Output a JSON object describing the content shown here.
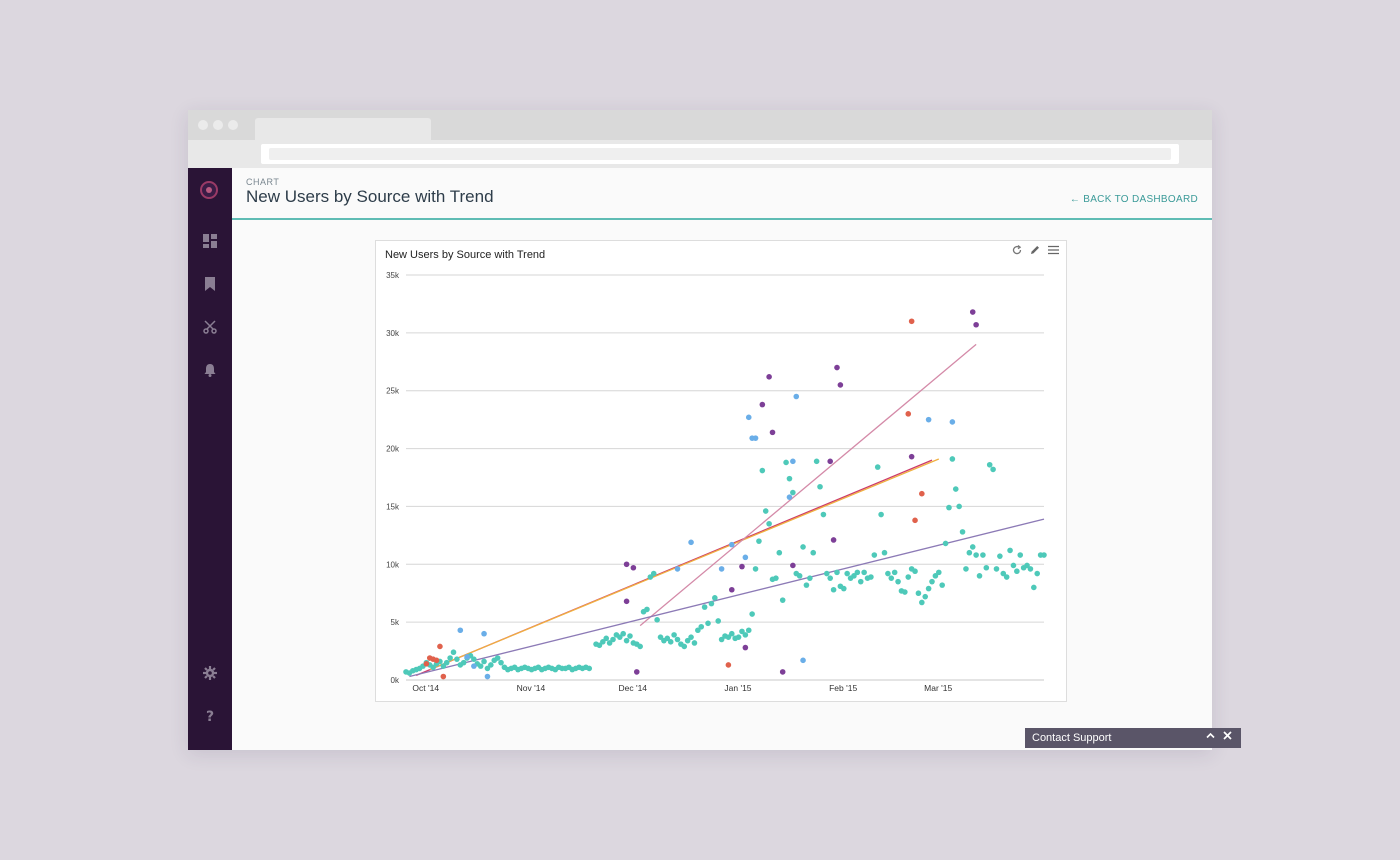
{
  "page": {
    "eyebrow": "CHART",
    "title": "New Users by Source with Trend",
    "back_label": "BACK TO DASHBOARD"
  },
  "sidebar": {
    "icons": [
      "logo",
      "dashboard-icon",
      "bookmark-icon",
      "scissors-icon",
      "bell-icon",
      "gear-icon",
      "help-icon"
    ]
  },
  "card": {
    "title": "New Users by Source with Trend",
    "tools": [
      "refresh-icon",
      "edit-icon",
      "menu-icon"
    ]
  },
  "support": {
    "label": "Contact Support"
  },
  "colors": {
    "accent": "#5fbcb4",
    "sidebar": "#2a1436"
  },
  "chart_data": {
    "type": "scatter",
    "title": "New Users by Source with Trend",
    "xlabel": "",
    "ylabel": "",
    "ylim": [
      0,
      35000
    ],
    "xlim": [
      "2014-09-24",
      "2015-03-31"
    ],
    "y_ticks": [
      "0k",
      "5k",
      "10k",
      "15k",
      "20k",
      "25k",
      "30k",
      "35k"
    ],
    "x_ticks": [
      {
        "label": "Oct '14",
        "date": "2014-10-01"
      },
      {
        "label": "Nov '14",
        "date": "2014-11-01"
      },
      {
        "label": "Dec '14",
        "date": "2014-12-01"
      },
      {
        "label": "Jan '15",
        "date": "2015-01-01"
      },
      {
        "label": "Feb '15",
        "date": "2015-02-01"
      },
      {
        "label": "Mar '15",
        "date": "2015-03-01"
      }
    ],
    "grid": true,
    "series": [
      {
        "color": "#4ec9b9",
        "points": [
          [
            "2014-09-24",
            700
          ],
          [
            "2014-09-25",
            600
          ],
          [
            "2014-09-26",
            800
          ],
          [
            "2014-09-27",
            900
          ],
          [
            "2014-09-28",
            1000
          ],
          [
            "2014-09-29",
            1200
          ],
          [
            "2014-09-30",
            1500
          ],
          [
            "2014-10-01",
            1300
          ],
          [
            "2014-10-02",
            1100
          ],
          [
            "2014-10-03",
            1400
          ],
          [
            "2014-10-04",
            1600
          ],
          [
            "2014-10-05",
            1200
          ],
          [
            "2014-10-06",
            1500
          ],
          [
            "2014-10-07",
            1900
          ],
          [
            "2014-10-08",
            2400
          ],
          [
            "2014-10-09",
            1800
          ],
          [
            "2014-10-10",
            1300
          ],
          [
            "2014-10-11",
            1500
          ],
          [
            "2014-10-12",
            1900
          ],
          [
            "2014-10-13",
            2100
          ],
          [
            "2014-10-14",
            1800
          ],
          [
            "2014-10-15",
            1400
          ],
          [
            "2014-10-16",
            1200
          ],
          [
            "2014-10-17",
            1600
          ],
          [
            "2014-10-18",
            1000
          ],
          [
            "2014-10-19",
            1300
          ],
          [
            "2014-10-20",
            1700
          ],
          [
            "2014-10-21",
            1900
          ],
          [
            "2014-10-22",
            1500
          ],
          [
            "2014-10-23",
            1100
          ],
          [
            "2014-10-24",
            900
          ],
          [
            "2014-10-25",
            1000
          ],
          [
            "2014-10-26",
            1100
          ],
          [
            "2014-10-27",
            900
          ],
          [
            "2014-10-28",
            1000
          ],
          [
            "2014-10-29",
            1100
          ],
          [
            "2014-10-30",
            1000
          ],
          [
            "2014-10-31",
            900
          ],
          [
            "2014-11-01",
            1000
          ],
          [
            "2014-11-02",
            1100
          ],
          [
            "2014-11-03",
            900
          ],
          [
            "2014-11-04",
            1000
          ],
          [
            "2014-11-05",
            1100
          ],
          [
            "2014-11-06",
            1000
          ],
          [
            "2014-11-07",
            900
          ],
          [
            "2014-11-08",
            1100
          ],
          [
            "2014-11-09",
            1000
          ],
          [
            "2014-11-10",
            1000
          ],
          [
            "2014-11-11",
            1100
          ],
          [
            "2014-11-12",
            900
          ],
          [
            "2014-11-13",
            1000
          ],
          [
            "2014-11-14",
            1100
          ],
          [
            "2014-11-15",
            1000
          ],
          [
            "2014-11-16",
            1100
          ],
          [
            "2014-11-17",
            1000
          ],
          [
            "2014-11-19",
            3100
          ],
          [
            "2014-11-20",
            3000
          ],
          [
            "2014-11-21",
            3300
          ],
          [
            "2014-11-22",
            3600
          ],
          [
            "2014-11-23",
            3200
          ],
          [
            "2014-11-24",
            3500
          ],
          [
            "2014-11-25",
            3900
          ],
          [
            "2014-11-26",
            3700
          ],
          [
            "2014-11-27",
            4000
          ],
          [
            "2014-11-28",
            3400
          ],
          [
            "2014-11-29",
            3800
          ],
          [
            "2014-11-30",
            3200
          ],
          [
            "2014-12-01",
            3100
          ],
          [
            "2014-12-02",
            2900
          ],
          [
            "2014-12-03",
            5900
          ],
          [
            "2014-12-04",
            6100
          ],
          [
            "2014-12-05",
            8900
          ],
          [
            "2014-12-06",
            9200
          ],
          [
            "2014-12-07",
            5200
          ],
          [
            "2014-12-08",
            3700
          ],
          [
            "2014-12-09",
            3400
          ],
          [
            "2014-12-10",
            3600
          ],
          [
            "2014-12-11",
            3300
          ],
          [
            "2014-12-12",
            3900
          ],
          [
            "2014-12-13",
            3500
          ],
          [
            "2014-12-14",
            3100
          ],
          [
            "2014-12-15",
            2900
          ],
          [
            "2014-12-16",
            3400
          ],
          [
            "2014-12-17",
            3700
          ],
          [
            "2014-12-18",
            3200
          ],
          [
            "2014-12-19",
            4300
          ],
          [
            "2014-12-20",
            4600
          ],
          [
            "2014-12-21",
            6300
          ],
          [
            "2014-12-22",
            4900
          ],
          [
            "2014-12-23",
            6600
          ],
          [
            "2014-12-24",
            7100
          ],
          [
            "2014-12-25",
            5100
          ],
          [
            "2014-12-26",
            3500
          ],
          [
            "2014-12-27",
            3800
          ],
          [
            "2014-12-28",
            3700
          ],
          [
            "2014-12-29",
            4000
          ],
          [
            "2014-12-30",
            3600
          ],
          [
            "2014-12-31",
            3700
          ],
          [
            "2015-01-01",
            4200
          ],
          [
            "2015-01-02",
            3900
          ],
          [
            "2015-01-03",
            4300
          ],
          [
            "2015-01-04",
            5700
          ],
          [
            "2015-01-05",
            9600
          ],
          [
            "2015-01-06",
            12000
          ],
          [
            "2015-01-07",
            18100
          ],
          [
            "2015-01-08",
            14600
          ],
          [
            "2015-01-09",
            13500
          ],
          [
            "2015-01-10",
            8700
          ],
          [
            "2015-01-11",
            8800
          ],
          [
            "2015-01-12",
            11000
          ],
          [
            "2015-01-13",
            6900
          ],
          [
            "2015-01-14",
            18800
          ],
          [
            "2015-01-15",
            17400
          ],
          [
            "2015-01-16",
            16200
          ],
          [
            "2015-01-17",
            9200
          ],
          [
            "2015-01-18",
            9000
          ],
          [
            "2015-01-19",
            11500
          ],
          [
            "2015-01-20",
            8200
          ],
          [
            "2015-01-21",
            8800
          ],
          [
            "2015-01-22",
            11000
          ],
          [
            "2015-01-23",
            18900
          ],
          [
            "2015-01-24",
            16700
          ],
          [
            "2015-01-25",
            14300
          ],
          [
            "2015-01-26",
            9200
          ],
          [
            "2015-01-27",
            8800
          ],
          [
            "2015-01-28",
            7800
          ],
          [
            "2015-01-29",
            9300
          ],
          [
            "2015-01-30",
            8100
          ],
          [
            "2015-01-31",
            7900
          ],
          [
            "2015-02-01",
            9200
          ],
          [
            "2015-02-02",
            8800
          ],
          [
            "2015-02-03",
            9000
          ],
          [
            "2015-02-04",
            9300
          ],
          [
            "2015-02-05",
            8500
          ],
          [
            "2015-02-06",
            9300
          ],
          [
            "2015-02-07",
            8800
          ],
          [
            "2015-02-08",
            8900
          ],
          [
            "2015-02-09",
            10800
          ],
          [
            "2015-02-10",
            18400
          ],
          [
            "2015-02-11",
            14300
          ],
          [
            "2015-02-12",
            11000
          ],
          [
            "2015-02-13",
            9200
          ],
          [
            "2015-02-14",
            8800
          ],
          [
            "2015-02-15",
            9300
          ],
          [
            "2015-02-16",
            8500
          ],
          [
            "2015-02-17",
            7700
          ],
          [
            "2015-02-18",
            7600
          ],
          [
            "2015-02-19",
            8900
          ],
          [
            "2015-02-20",
            9600
          ],
          [
            "2015-02-21",
            9400
          ],
          [
            "2015-02-22",
            7500
          ],
          [
            "2015-02-23",
            6700
          ],
          [
            "2015-02-24",
            7200
          ],
          [
            "2015-02-25",
            7900
          ],
          [
            "2015-02-26",
            8500
          ],
          [
            "2015-02-27",
            9000
          ],
          [
            "2015-02-28",
            9300
          ],
          [
            "2015-03-01",
            8200
          ],
          [
            "2015-03-02",
            11800
          ],
          [
            "2015-03-03",
            14900
          ],
          [
            "2015-03-04",
            19100
          ],
          [
            "2015-03-05",
            16500
          ],
          [
            "2015-03-06",
            15000
          ],
          [
            "2015-03-07",
            12800
          ],
          [
            "2015-03-08",
            9600
          ],
          [
            "2015-03-09",
            11000
          ],
          [
            "2015-03-10",
            11500
          ],
          [
            "2015-03-11",
            10800
          ],
          [
            "2015-03-12",
            9000
          ],
          [
            "2015-03-13",
            10800
          ],
          [
            "2015-03-14",
            9700
          ],
          [
            "2015-03-15",
            18600
          ],
          [
            "2015-03-16",
            18200
          ],
          [
            "2015-03-17",
            9600
          ],
          [
            "2015-03-18",
            10700
          ],
          [
            "2015-03-19",
            9200
          ],
          [
            "2015-03-20",
            8900
          ],
          [
            "2015-03-21",
            11200
          ],
          [
            "2015-03-22",
            9900
          ],
          [
            "2015-03-23",
            9400
          ],
          [
            "2015-03-24",
            10800
          ],
          [
            "2015-03-25",
            9700
          ],
          [
            "2015-03-26",
            9900
          ],
          [
            "2015-03-27",
            9600
          ],
          [
            "2015-03-28",
            8000
          ],
          [
            "2015-03-29",
            9200
          ],
          [
            "2015-03-30",
            10800
          ],
          [
            "2015-03-31",
            10800
          ]
        ]
      },
      {
        "color": "#6aaee8",
        "points": [
          [
            "2014-10-10",
            4300
          ],
          [
            "2014-10-12",
            2000
          ],
          [
            "2014-10-14",
            1200
          ],
          [
            "2014-10-17",
            4000
          ],
          [
            "2014-10-18",
            300
          ],
          [
            "2014-12-13",
            9600
          ],
          [
            "2014-12-17",
            11900
          ],
          [
            "2014-12-26",
            9600
          ],
          [
            "2014-12-29",
            11700
          ],
          [
            "2015-01-02",
            10600
          ],
          [
            "2015-01-03",
            22700
          ],
          [
            "2015-01-04",
            20900
          ],
          [
            "2015-01-05",
            20900
          ],
          [
            "2015-01-15",
            15800
          ],
          [
            "2015-01-16",
            18900
          ],
          [
            "2015-01-17",
            24500
          ],
          [
            "2015-01-19",
            1700
          ],
          [
            "2015-02-25",
            22500
          ],
          [
            "2015-03-04",
            22300
          ]
        ]
      },
      {
        "color": "#7d3f97",
        "points": [
          [
            "2014-11-28",
            6800
          ],
          [
            "2014-11-28",
            10000
          ],
          [
            "2014-11-30",
            9700
          ],
          [
            "2014-12-01",
            700
          ],
          [
            "2014-12-29",
            7800
          ],
          [
            "2015-01-01",
            9800
          ],
          [
            "2015-01-02",
            2800
          ],
          [
            "2015-01-07",
            23800
          ],
          [
            "2015-01-09",
            26200
          ],
          [
            "2015-01-10",
            21400
          ],
          [
            "2015-01-13",
            700
          ],
          [
            "2015-01-16",
            9900
          ],
          [
            "2015-01-27",
            18900
          ],
          [
            "2015-01-28",
            12100
          ],
          [
            "2015-01-29",
            27000
          ],
          [
            "2015-01-30",
            25500
          ],
          [
            "2015-02-20",
            19300
          ],
          [
            "2015-03-10",
            31800
          ],
          [
            "2015-03-11",
            30700
          ]
        ]
      },
      {
        "color": "#e0614c",
        "points": [
          [
            "2014-09-30",
            1400
          ],
          [
            "2014-10-01",
            1900
          ],
          [
            "2014-10-02",
            1800
          ],
          [
            "2014-10-03",
            1700
          ],
          [
            "2014-10-04",
            2900
          ],
          [
            "2014-10-05",
            300
          ],
          [
            "2014-12-28",
            1300
          ],
          [
            "2015-02-19",
            23000
          ],
          [
            "2015-02-20",
            31000
          ],
          [
            "2015-02-21",
            13800
          ],
          [
            "2015-02-23",
            16100
          ]
        ]
      }
    ],
    "trend_lines": [
      {
        "color": "#cc3a6a",
        "from": [
          "2014-09-27",
          400
        ],
        "to": [
          "2015-02-26",
          19000
        ]
      },
      {
        "color": "#f0b040",
        "from": [
          "2014-10-01",
          900
        ],
        "to": [
          "2015-02-28",
          19100
        ]
      },
      {
        "color": "#d48aa8",
        "from": [
          "2014-12-02",
          4700
        ],
        "to": [
          "2015-03-11",
          29000
        ]
      },
      {
        "color": "#8c7ab6",
        "from": [
          "2014-09-25",
          300
        ],
        "to": [
          "2015-03-31",
          13900
        ]
      }
    ]
  }
}
